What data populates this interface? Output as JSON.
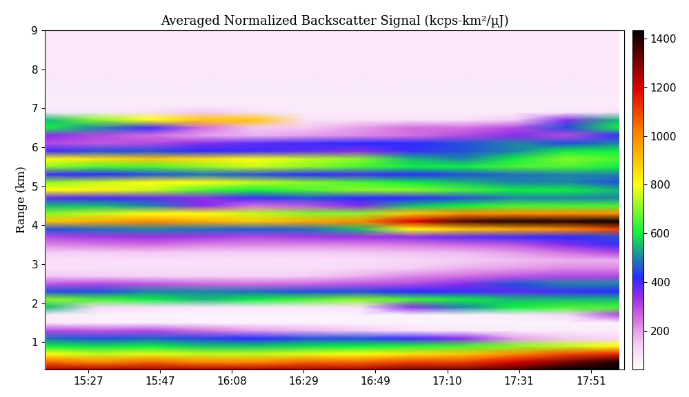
{
  "chart_data": {
    "type": "heatmap",
    "title": "Averaged Normalized Backscatter Signal (kcps-km²/µJ)",
    "y_label": "Range (km)",
    "x": [
      915,
      930,
      945,
      960,
      975,
      990,
      1005,
      1020,
      1035,
      1050,
      1065,
      1080
    ],
    "y": [
      0.3,
      0.5,
      0.7,
      0.9,
      1.1,
      1.3,
      1.5,
      1.7,
      1.9,
      2.1,
      2.3,
      2.5,
      2.7,
      2.9,
      3.1,
      3.3,
      3.5,
      3.7,
      3.9,
      4.1,
      4.3,
      4.5,
      4.7,
      4.9,
      5.1,
      5.3,
      5.5,
      5.7,
      5.9,
      6.1,
      6.3,
      6.5,
      6.7,
      6.9,
      7.1,
      8.0,
      9.0
    ],
    "values": [
      [
        1250,
        1250,
        1250,
        1250,
        1250,
        1250,
        1250,
        1300,
        1300,
        1350,
        1450,
        1500
      ],
      [
        1050,
        1000,
        1050,
        1000,
        1000,
        1050,
        1050,
        1100,
        1100,
        1200,
        1300,
        1400
      ],
      [
        800,
        750,
        780,
        750,
        750,
        780,
        800,
        850,
        900,
        1000,
        1100,
        1150
      ],
      [
        600,
        580,
        600,
        560,
        560,
        580,
        600,
        620,
        650,
        700,
        750,
        800
      ],
      [
        480,
        450,
        470,
        440,
        420,
        450,
        450,
        400,
        350,
        200,
        150,
        120
      ],
      [
        300,
        280,
        300,
        250,
        200,
        180,
        150,
        100,
        90,
        80,
        80,
        80
      ],
      [
        90,
        80,
        80,
        70,
        70,
        70,
        70,
        70,
        70,
        70,
        70,
        70
      ],
      [
        80,
        70,
        70,
        70,
        70,
        70,
        70,
        70,
        70,
        80,
        120,
        300
      ],
      [
        550,
        120,
        100,
        90,
        90,
        90,
        100,
        350,
        500,
        600,
        650,
        650
      ],
      [
        700,
        650,
        600,
        550,
        600,
        650,
        700,
        650,
        600,
        550,
        550,
        550
      ],
      [
        450,
        450,
        500,
        500,
        480,
        450,
        450,
        420,
        400,
        380,
        400,
        420
      ],
      [
        280,
        300,
        280,
        260,
        250,
        260,
        280,
        300,
        350,
        450,
        500,
        500
      ],
      [
        150,
        140,
        130,
        130,
        130,
        140,
        180,
        220,
        250,
        280,
        300,
        300
      ],
      [
        110,
        110,
        110,
        110,
        110,
        110,
        120,
        140,
        180,
        200,
        220,
        220
      ],
      [
        110,
        110,
        110,
        110,
        110,
        110,
        110,
        120,
        140,
        160,
        180,
        180
      ],
      [
        140,
        140,
        150,
        140,
        140,
        140,
        150,
        160,
        170,
        200,
        250,
        300
      ],
      [
        220,
        240,
        250,
        230,
        220,
        220,
        230,
        240,
        260,
        280,
        350,
        400
      ],
      [
        300,
        320,
        330,
        320,
        300,
        320,
        330,
        350,
        380,
        400,
        420,
        450
      ],
      [
        450,
        480,
        500,
        480,
        460,
        480,
        550,
        800,
        900,
        950,
        1000,
        1100
      ],
      [
        900,
        950,
        1000,
        950,
        900,
        950,
        1000,
        1200,
        1350,
        1400,
        1400,
        1450
      ],
      [
        700,
        750,
        800,
        800,
        750,
        700,
        700,
        900,
        1000,
        1000,
        1000,
        1000
      ],
      [
        550,
        550,
        500,
        350,
        250,
        280,
        350,
        550,
        600,
        650,
        650,
        650
      ],
      [
        380,
        400,
        380,
        350,
        400,
        450,
        420,
        420,
        450,
        500,
        500,
        500
      ],
      [
        800,
        820,
        750,
        650,
        600,
        650,
        700,
        700,
        650,
        600,
        600,
        550
      ],
      [
        700,
        750,
        800,
        800,
        750,
        700,
        650,
        600,
        550,
        500,
        500,
        450
      ],
      [
        400,
        420,
        450,
        480,
        450,
        420,
        400,
        420,
        450,
        480,
        500,
        500
      ],
      [
        700,
        650,
        650,
        700,
        750,
        700,
        650,
        600,
        600,
        650,
        650,
        600
      ],
      [
        800,
        850,
        900,
        850,
        800,
        750,
        700,
        550,
        500,
        600,
        700,
        650
      ],
      [
        400,
        450,
        450,
        420,
        400,
        380,
        350,
        400,
        450,
        500,
        600,
        600
      ],
      [
        300,
        280,
        300,
        350,
        380,
        400,
        420,
        420,
        450,
        500,
        450,
        500
      ],
      [
        350,
        300,
        250,
        200,
        180,
        200,
        220,
        250,
        300,
        350,
        300,
        400
      ],
      [
        600,
        500,
        400,
        250,
        150,
        150,
        200,
        250,
        250,
        300,
        450,
        600
      ],
      [
        550,
        700,
        800,
        900,
        900,
        100,
        100,
        100,
        100,
        150,
        350,
        550
      ],
      [
        90,
        90,
        100,
        150,
        100,
        80,
        80,
        80,
        80,
        80,
        90,
        100
      ],
      [
        80,
        80,
        80,
        80,
        80,
        80,
        80,
        80,
        80,
        80,
        80,
        80
      ],
      [
        90,
        90,
        90,
        90,
        90,
        90,
        90,
        90,
        90,
        90,
        90,
        90
      ],
      [
        90,
        90,
        90,
        90,
        90,
        90,
        90,
        90,
        90,
        90,
        90,
        90
      ]
    ],
    "xlim": [
      914.5,
      1081.5
    ],
    "xticks": [
      {
        "value": 927.0,
        "label": "15:27"
      },
      {
        "value": 947.7,
        "label": "15:47"
      },
      {
        "value": 968.4,
        "label": "16:08"
      },
      {
        "value": 989.1,
        "label": "16:29"
      },
      {
        "value": 1009.8,
        "label": "16:49"
      },
      {
        "value": 1030.5,
        "label": "17:10"
      },
      {
        "value": 1051.2,
        "label": "17:31"
      },
      {
        "value": 1071.9,
        "label": "17:51"
      }
    ],
    "ylim": [
      0.3,
      9
    ],
    "yticks": [
      1,
      2,
      3,
      4,
      5,
      6,
      7,
      8,
      9
    ],
    "colorbar_range": [
      40,
      1435
    ],
    "colorbar_ticks": [
      200,
      400,
      600,
      800,
      1000,
      1200,
      1400
    ]
  }
}
